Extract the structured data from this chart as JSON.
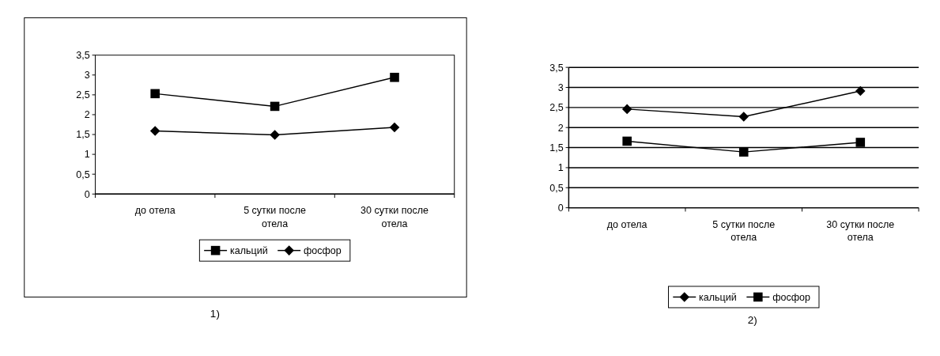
{
  "chart_data": [
    {
      "type": "line",
      "categories": [
        "до отела",
        "5 сутки после отела",
        "30 сутки после отела"
      ],
      "ylim": [
        0,
        3.5
      ],
      "yticks": [
        0,
        {
          "value": 0.5,
          "label": "0,5"
        },
        1,
        {
          "value": 1.5,
          "label": "1,5"
        },
        2,
        {
          "value": 2.5,
          "label": "2,5"
        },
        3,
        {
          "value": 3.5,
          "label": "3,5"
        }
      ],
      "grid": false,
      "legend": "bottom",
      "annotations": [
        "1)"
      ],
      "series": [
        {
          "name": "кальций",
          "color": "#000000",
          "marker": "square",
          "values": [
            2.53,
            2.21,
            2.94
          ]
        },
        {
          "name": "фосфор",
          "color": "#000000",
          "marker": "diamond",
          "values": [
            1.59,
            1.49,
            1.68
          ]
        }
      ]
    },
    {
      "type": "line",
      "categories": [
        "до отела",
        "5 сутки после отела",
        "30 сутки после отела"
      ],
      "ylim": [
        0,
        3.5
      ],
      "yticks": [
        0,
        {
          "value": 0.5,
          "label": "0,5"
        },
        1,
        {
          "value": 1.5,
          "label": "1,5"
        },
        2,
        {
          "value": 2.5,
          "label": "2,5"
        },
        3,
        {
          "value": 3.5,
          "label": "3,5"
        }
      ],
      "grid": "y",
      "legend": "bottom",
      "annotations": [
        "2)"
      ],
      "series": [
        {
          "name": "кальций",
          "color": "#000000",
          "marker": "diamond",
          "values": [
            2.46,
            2.27,
            2.91
          ]
        },
        {
          "name": "фосфор",
          "color": "#000000",
          "marker": "square",
          "values": [
            1.66,
            1.39,
            1.63
          ]
        }
      ]
    }
  ]
}
